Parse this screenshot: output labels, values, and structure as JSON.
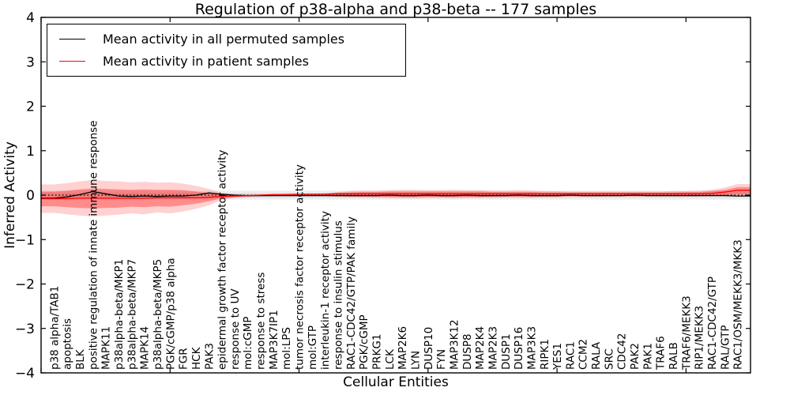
{
  "figure": {
    "title": "Regulation of p38-alpha and p38-beta -- 177 samples",
    "xlabel": "Cellular Entities",
    "ylabel": "Inferred Activity"
  },
  "legend": {
    "entries": [
      {
        "label": "Mean activity in all permuted samples",
        "color": "#000000"
      },
      {
        "label": "Mean activity in patient samples",
        "color": "#ff0000"
      }
    ]
  },
  "chart_data": {
    "type": "line",
    "title": "Regulation of p38-alpha and p38-beta -- 177 samples",
    "xlabel": "Cellular Entities",
    "ylabel": "Inferred Activity",
    "ylim": [
      -4,
      4
    ],
    "grid": false,
    "legend_position": "upper left",
    "x_major_tick_step": 10,
    "yticks": [
      {
        "v": 4,
        "label": "4"
      },
      {
        "v": 3,
        "label": "3"
      },
      {
        "v": 2,
        "label": "2"
      },
      {
        "v": 1,
        "label": "1"
      },
      {
        "v": 0,
        "label": "0"
      },
      {
        "v": -1,
        "label": "−1"
      },
      {
        "v": -2,
        "label": "−2"
      },
      {
        "v": -3,
        "label": "−3"
      },
      {
        "v": -4,
        "label": "−4"
      }
    ],
    "categories": [
      "p38 alpha/TAB1",
      "apoptosis",
      "BLK",
      "positive regulation of innate immune response",
      "MAPK11",
      "p38alpha-beta/MKP1",
      "p38alpha-beta/MKP7",
      "MAPK14",
      "p38alpha-beta/MKP5",
      "PGK/cGMP/p38 alpha",
      "FGR",
      "HCK",
      "PAK3",
      "epidermal growth factor receptor activity",
      "response to UV",
      "mol:cGMP",
      "response to stress",
      "MAP3K7IP1",
      "mol:LPS",
      "tumor necrosis factor receptor activity",
      "mol:GTP",
      "interleukin-1 receptor activity",
      "response to insulin stimulus",
      "RAC1-CDC42/GTP/PAK family",
      "PGK/cGMP",
      "PRKG1",
      "LCK",
      "MAP2K6",
      "LYN",
      "DUSP10",
      "FYN",
      "MAP3K12",
      "DUSP8",
      "MAP2K4",
      "MAP2K3",
      "DUSP1",
      "DUSP16",
      "MAP3K3",
      "RIPK1",
      "YES1",
      "RAC1",
      "CCM2",
      "RALA",
      "SRC",
      "CDC42",
      "PAK2",
      "PAK1",
      "TRAF6",
      "RALB",
      "TRAF6/MEKK3",
      "RIP1/MEKK3",
      "RAC1-CDC42/GTP",
      "RAL/GTP",
      "RAC1/OSM/MEKK3/MKK3"
    ],
    "series": [
      {
        "id": "permuted-mean",
        "name": "Mean activity in all permuted samples",
        "color": "#000000",
        "values": [
          -0.07,
          -0.04,
          0.01,
          0.08,
          0.03,
          -0.02,
          -0.03,
          -0.02,
          -0.03,
          -0.02,
          -0.02,
          0.0,
          0.05,
          0.02,
          0.0,
          -0.01,
          -0.01,
          -0.01,
          -0.01,
          -0.01,
          -0.01,
          -0.01,
          -0.01,
          -0.01,
          -0.01,
          -0.01,
          0.0,
          -0.01,
          -0.01,
          0.0,
          -0.01,
          -0.01,
          0.0,
          -0.01,
          -0.01,
          -0.01,
          0.0,
          -0.01,
          -0.01,
          -0.01,
          0.0,
          -0.01,
          -0.01,
          -0.01,
          -0.01,
          0.0,
          -0.01,
          -0.01,
          -0.01,
          -0.01,
          -0.01,
          -0.01,
          -0.01,
          -0.02
        ]
      },
      {
        "id": "patient-mean",
        "name": "Mean activity in patient samples",
        "color": "#ff0000",
        "values": [
          -0.08,
          -0.08,
          -0.07,
          -0.07,
          -0.07,
          -0.07,
          -0.07,
          -0.07,
          -0.06,
          -0.06,
          -0.06,
          -0.06,
          -0.05,
          -0.03,
          -0.02,
          -0.01,
          0.0,
          0.01,
          0.01,
          0.02,
          0.02,
          0.02,
          0.03,
          0.03,
          0.03,
          0.03,
          0.03,
          0.03,
          0.03,
          0.03,
          0.03,
          0.03,
          0.03,
          0.03,
          0.03,
          0.03,
          0.03,
          0.03,
          0.03,
          0.03,
          0.03,
          0.03,
          0.03,
          0.03,
          0.03,
          0.03,
          0.03,
          0.03,
          0.03,
          0.03,
          0.03,
          0.04,
          0.07,
          0.11
        ]
      }
    ],
    "bands": [
      {
        "name": "permuted-band-outer",
        "color": "rgba(0,0,0,0.07)",
        "constant": [
          -0.1,
          0.1
        ]
      },
      {
        "name": "permuted-band-inner",
        "color": "rgba(0,0,0,0.06)",
        "constant": [
          -0.05,
          0.05
        ]
      },
      {
        "name": "patient-band-outer",
        "color": "rgba(255,0,0,0.18)",
        "values": [
          [
            -0.4,
            0.24
          ],
          [
            -0.43,
            0.27
          ],
          [
            -0.46,
            0.31
          ],
          [
            -0.48,
            0.34
          ],
          [
            -0.46,
            0.32
          ],
          [
            -0.44,
            0.31
          ],
          [
            -0.41,
            0.29
          ],
          [
            -0.43,
            0.3
          ],
          [
            -0.39,
            0.28
          ],
          [
            -0.41,
            0.29
          ],
          [
            -0.37,
            0.26
          ],
          [
            -0.31,
            0.21
          ],
          [
            -0.23,
            0.14
          ],
          [
            -0.11,
            0.05
          ],
          [
            -0.06,
            0.02
          ],
          [
            -0.04,
            0.01
          ],
          [
            -0.03,
            0.01
          ],
          [
            -0.02,
            0.02
          ],
          [
            -0.02,
            0.03
          ],
          [
            -0.02,
            0.03
          ],
          [
            -0.02,
            0.03
          ],
          [
            -0.02,
            0.04
          ],
          [
            -0.04,
            0.07
          ],
          [
            -0.05,
            0.09
          ],
          [
            -0.05,
            0.1
          ],
          [
            -0.06,
            0.1
          ],
          [
            -0.06,
            0.11
          ],
          [
            -0.07,
            0.12
          ],
          [
            -0.07,
            0.12
          ],
          [
            -0.06,
            0.11
          ],
          [
            -0.06,
            0.11
          ],
          [
            -0.07,
            0.12
          ],
          [
            -0.06,
            0.11
          ],
          [
            -0.06,
            0.11
          ],
          [
            -0.06,
            0.1
          ],
          [
            -0.05,
            0.1
          ],
          [
            -0.06,
            0.11
          ],
          [
            -0.06,
            0.1
          ],
          [
            -0.05,
            0.09
          ],
          [
            -0.05,
            0.09
          ],
          [
            -0.04,
            0.08
          ],
          [
            -0.04,
            0.08
          ],
          [
            -0.04,
            0.08
          ],
          [
            -0.03,
            0.08
          ],
          [
            -0.03,
            0.08
          ],
          [
            -0.04,
            0.08
          ],
          [
            -0.03,
            0.08
          ],
          [
            -0.03,
            0.08
          ],
          [
            -0.03,
            0.09
          ],
          [
            -0.03,
            0.09
          ],
          [
            -0.03,
            0.1
          ],
          [
            -0.02,
            0.12
          ],
          [
            -0.01,
            0.17
          ],
          [
            0.0,
            0.25
          ]
        ]
      },
      {
        "name": "patient-band-inner",
        "color": "rgba(255,0,0,0.33)",
        "values": [
          [
            -0.25,
            0.08
          ],
          [
            -0.27,
            0.1
          ],
          [
            -0.29,
            0.13
          ],
          [
            -0.3,
            0.15
          ],
          [
            -0.29,
            0.14
          ],
          [
            -0.28,
            0.13
          ],
          [
            -0.26,
            0.12
          ],
          [
            -0.27,
            0.13
          ],
          [
            -0.25,
            0.12
          ],
          [
            -0.26,
            0.12
          ],
          [
            -0.23,
            0.11
          ],
          [
            -0.19,
            0.08
          ],
          [
            -0.14,
            0.05
          ],
          [
            -0.07,
            0.01
          ],
          [
            -0.04,
            0.0
          ],
          [
            -0.03,
            0.0
          ],
          [
            -0.02,
            0.01
          ],
          [
            -0.01,
            0.02
          ],
          [
            -0.01,
            0.02
          ],
          [
            -0.01,
            0.02
          ],
          [
            -0.01,
            0.02
          ],
          [
            -0.01,
            0.03
          ],
          [
            -0.02,
            0.05
          ],
          [
            -0.03,
            0.06
          ],
          [
            -0.03,
            0.07
          ],
          [
            -0.03,
            0.07
          ],
          [
            -0.04,
            0.08
          ],
          [
            -0.04,
            0.08
          ],
          [
            -0.04,
            0.08
          ],
          [
            -0.04,
            0.08
          ],
          [
            -0.04,
            0.08
          ],
          [
            -0.04,
            0.08
          ],
          [
            -0.04,
            0.08
          ],
          [
            -0.04,
            0.08
          ],
          [
            -0.03,
            0.07
          ],
          [
            -0.03,
            0.07
          ],
          [
            -0.03,
            0.07
          ],
          [
            -0.03,
            0.07
          ],
          [
            -0.03,
            0.06
          ],
          [
            -0.03,
            0.06
          ],
          [
            -0.02,
            0.06
          ],
          [
            -0.02,
            0.06
          ],
          [
            -0.02,
            0.06
          ],
          [
            -0.02,
            0.06
          ],
          [
            -0.02,
            0.06
          ],
          [
            -0.02,
            0.06
          ],
          [
            -0.02,
            0.06
          ],
          [
            -0.02,
            0.06
          ],
          [
            -0.02,
            0.06
          ],
          [
            -0.02,
            0.07
          ],
          [
            -0.02,
            0.07
          ],
          [
            -0.01,
            0.09
          ],
          [
            0.0,
            0.12
          ],
          [
            0.02,
            0.18
          ]
        ]
      }
    ],
    "zero_line": {
      "style": "dotted",
      "color": "#000000",
      "y": 0
    }
  }
}
